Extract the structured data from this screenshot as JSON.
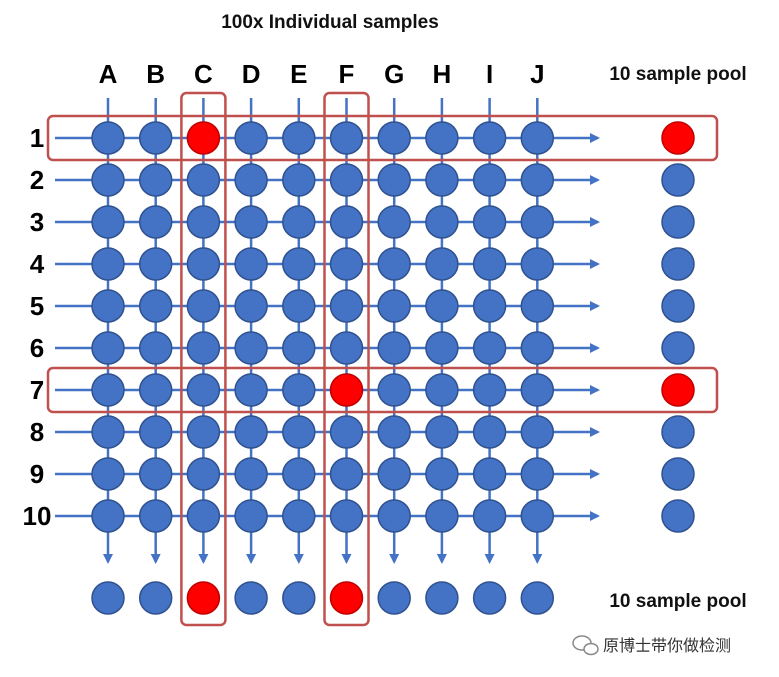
{
  "title": "100x Individual samples",
  "columns": [
    "A",
    "B",
    "C",
    "D",
    "E",
    "F",
    "G",
    "H",
    "I",
    "J"
  ],
  "rows": [
    "1",
    "2",
    "3",
    "4",
    "5",
    "6",
    "7",
    "8",
    "9",
    "10"
  ],
  "row_pool_label": "10 sample pool",
  "column_pool_label": "10 sample pool",
  "positive_samples": [
    {
      "row": "1",
      "column": "C"
    },
    {
      "row": "7",
      "column": "F"
    }
  ],
  "highlighted_rows": [
    "1",
    "7"
  ],
  "highlighted_columns": [
    "C",
    "F"
  ],
  "watermark": "原博士带你做检测",
  "colors": {
    "negative": "#4472C4",
    "negative_stroke": "#2F528F",
    "positive": "#FF0000",
    "highlight_box": "#C0504D",
    "arrow": "#4472C4"
  }
}
